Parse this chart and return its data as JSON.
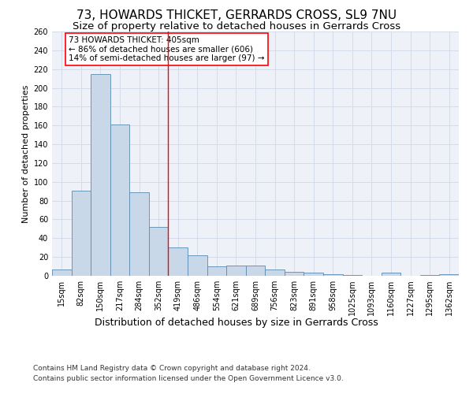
{
  "title": "73, HOWARDS THICKET, GERRARDS CROSS, SL9 7NU",
  "subtitle": "Size of property relative to detached houses in Gerrards Cross",
  "xlabel": "Distribution of detached houses by size in Gerrards Cross",
  "ylabel": "Number of detached properties",
  "categories": [
    "15sqm",
    "82sqm",
    "150sqm",
    "217sqm",
    "284sqm",
    "352sqm",
    "419sqm",
    "486sqm",
    "554sqm",
    "621sqm",
    "689sqm",
    "756sqm",
    "823sqm",
    "891sqm",
    "958sqm",
    "1025sqm",
    "1093sqm",
    "1160sqm",
    "1227sqm",
    "1295sqm",
    "1362sqm"
  ],
  "values": [
    7,
    91,
    215,
    161,
    89,
    52,
    30,
    22,
    10,
    11,
    11,
    7,
    4,
    3,
    2,
    1,
    0,
    3,
    0,
    1,
    2
  ],
  "bar_color": "#c8d8e8",
  "bar_edge_color": "#5a8ab0",
  "annotation_text": "73 HOWARDS THICKET: 405sqm\n← 86% of detached houses are smaller (606)\n14% of semi-detached houses are larger (97) →",
  "annotation_box_color": "white",
  "annotation_box_edge": "red",
  "vline_x_index": 5.5,
  "vline_color": "red",
  "ylim": [
    0,
    260
  ],
  "yticks": [
    0,
    20,
    40,
    60,
    80,
    100,
    120,
    140,
    160,
    180,
    200,
    220,
    240,
    260
  ],
  "grid_color": "#d0d8e8",
  "background_color": "#eef2f8",
  "footer_line1": "Contains HM Land Registry data © Crown copyright and database right 2024.",
  "footer_line2": "Contains public sector information licensed under the Open Government Licence v3.0.",
  "title_fontsize": 11,
  "subtitle_fontsize": 9.5,
  "xlabel_fontsize": 9,
  "ylabel_fontsize": 8,
  "tick_fontsize": 7,
  "footer_fontsize": 6.5,
  "annotation_fontsize": 7.5
}
